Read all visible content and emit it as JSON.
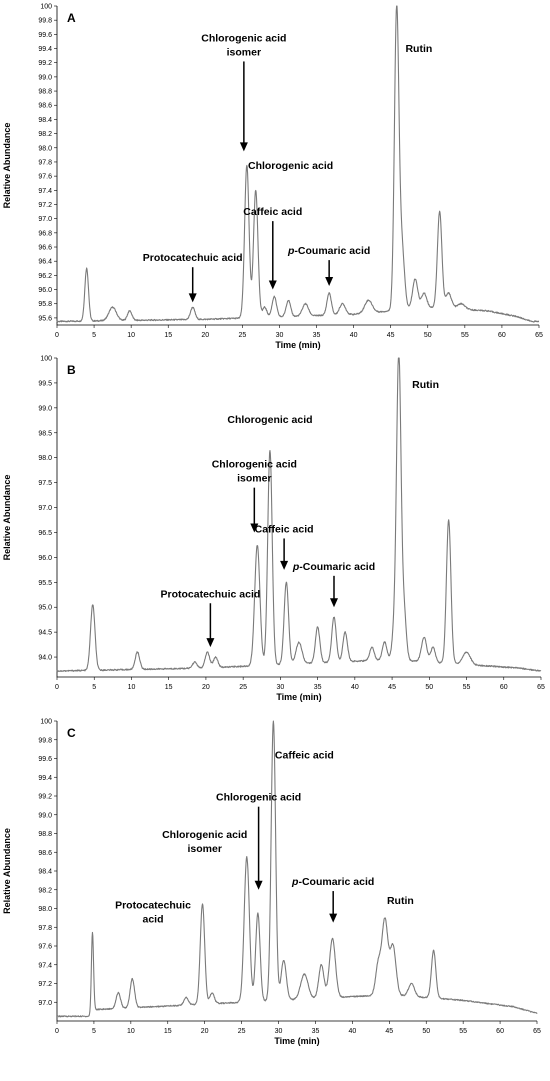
{
  "chart_data": [
    {
      "type": "line",
      "panel_label": "A",
      "xlabel": "Time (min)",
      "ylabel": "Relative Abundance",
      "xlim": [
        0,
        65
      ],
      "ylim": [
        95.5,
        100.0
      ],
      "xticks": [
        0,
        5,
        10,
        15,
        20,
        25,
        30,
        35,
        40,
        45,
        50,
        55,
        60,
        65
      ],
      "yticks": [
        "95.6",
        "95.8",
        "96.0",
        "96.2",
        "96.4",
        "96.6",
        "96.8",
        "97.0",
        "97.2",
        "97.4",
        "97.6",
        "97.8",
        "98.0",
        "98.2",
        "98.4",
        "98.6",
        "98.8",
        "99.0",
        "99.2",
        "99.4",
        "99.6",
        "99.8",
        "100"
      ],
      "baseline": {
        "x": [
          0,
          20,
          40,
          50,
          58,
          62,
          64
        ],
        "y": [
          95.55,
          95.58,
          95.65,
          95.75,
          95.7,
          95.62,
          95.55
        ]
      },
      "peaks": [
        {
          "x": 4.0,
          "y": 96.3,
          "w": 0.25
        },
        {
          "x": 7.5,
          "y": 95.75,
          "w": 0.5
        },
        {
          "x": 9.8,
          "y": 95.7,
          "w": 0.3
        },
        {
          "x": 18.3,
          "y": 95.75,
          "w": 0.3
        },
        {
          "x": 25.6,
          "y": 97.75,
          "w": 0.3
        },
        {
          "x": 26.8,
          "y": 97.4,
          "w": 0.3
        },
        {
          "x": 28.0,
          "y": 95.75,
          "w": 0.3
        },
        {
          "x": 29.3,
          "y": 95.9,
          "w": 0.3
        },
        {
          "x": 31.2,
          "y": 95.85,
          "w": 0.3
        },
        {
          "x": 33.5,
          "y": 95.8,
          "w": 0.4
        },
        {
          "x": 36.7,
          "y": 95.95,
          "w": 0.3
        },
        {
          "x": 38.5,
          "y": 95.8,
          "w": 0.4
        },
        {
          "x": 42.0,
          "y": 95.85,
          "w": 0.5
        },
        {
          "x": 45.8,
          "y": 99.9,
          "w": 0.3
        },
        {
          "x": 46.5,
          "y": 96.6,
          "w": 0.35
        },
        {
          "x": 48.3,
          "y": 96.15,
          "w": 0.35
        },
        {
          "x": 49.5,
          "y": 95.95,
          "w": 0.35
        },
        {
          "x": 51.6,
          "y": 97.1,
          "w": 0.3
        },
        {
          "x": 52.8,
          "y": 95.95,
          "w": 0.4
        },
        {
          "x": 54.5,
          "y": 95.8,
          "w": 0.5
        }
      ],
      "annotations": [
        {
          "text": "Protocatechuic acid",
          "x": 18.3,
          "arrow": true,
          "text_y": 96.4,
          "tip_y": 95.82
        },
        {
          "text": "Chlorogenic acid",
          "line2": "isomer",
          "x": 25.2,
          "arrow": true,
          "text_y": 99.5,
          "tip_y": 97.95
        },
        {
          "text": "Chlorogenic acid",
          "x": 31.5,
          "arrow": false,
          "text_y": 97.7
        },
        {
          "text": "Caffeic acid",
          "x": 29.1,
          "arrow": true,
          "text_y": 97.05,
          "tip_y": 96.0
        },
        {
          "text": "p-Coumaric acid",
          "x": 36.7,
          "arrow": true,
          "text_y": 96.5,
          "tip_y": 96.05
        },
        {
          "text": "Rutin",
          "x": 48.8,
          "arrow": false,
          "text_y": 99.35
        }
      ]
    },
    {
      "type": "line",
      "panel_label": "B",
      "xlabel": "Time (min)",
      "ylabel": "Relative Abundance",
      "xlim": [
        0,
        65
      ],
      "ylim": [
        93.6,
        100.0
      ],
      "xticks": [
        0,
        5,
        10,
        15,
        20,
        25,
        30,
        35,
        40,
        45,
        50,
        55,
        60,
        65
      ],
      "yticks": [
        "94.0",
        "94.5",
        "95.0",
        "95.5",
        "96.0",
        "96.5",
        "97.0",
        "97.5",
        "98.0",
        "98.5",
        "99.0",
        "99.5",
        "100"
      ],
      "baseline": {
        "x": [
          0,
          20,
          30,
          45,
          55,
          62,
          65
        ],
        "y": [
          93.72,
          93.78,
          93.85,
          93.95,
          93.85,
          93.78,
          93.72
        ]
      },
      "peaks": [
        {
          "x": 4.8,
          "y": 95.05,
          "w": 0.3
        },
        {
          "x": 10.8,
          "y": 94.1,
          "w": 0.3
        },
        {
          "x": 18.5,
          "y": 93.9,
          "w": 0.3
        },
        {
          "x": 20.2,
          "y": 94.1,
          "w": 0.3
        },
        {
          "x": 21.3,
          "y": 94.0,
          "w": 0.3
        },
        {
          "x": 26.9,
          "y": 96.25,
          "w": 0.35
        },
        {
          "x": 28.6,
          "y": 98.15,
          "w": 0.3
        },
        {
          "x": 30.8,
          "y": 95.5,
          "w": 0.3
        },
        {
          "x": 32.5,
          "y": 94.3,
          "w": 0.4
        },
        {
          "x": 35.0,
          "y": 94.6,
          "w": 0.3
        },
        {
          "x": 37.2,
          "y": 94.8,
          "w": 0.3
        },
        {
          "x": 38.7,
          "y": 94.5,
          "w": 0.3
        },
        {
          "x": 42.3,
          "y": 94.2,
          "w": 0.3
        },
        {
          "x": 44.0,
          "y": 94.3,
          "w": 0.3
        },
        {
          "x": 45.3,
          "y": 94.5,
          "w": 0.3
        },
        {
          "x": 45.9,
          "y": 100.0,
          "w": 0.3
        },
        {
          "x": 46.6,
          "y": 94.9,
          "w": 0.3
        },
        {
          "x": 49.3,
          "y": 94.4,
          "w": 0.35
        },
        {
          "x": 50.5,
          "y": 94.2,
          "w": 0.3
        },
        {
          "x": 52.6,
          "y": 96.75,
          "w": 0.3
        },
        {
          "x": 55.0,
          "y": 94.1,
          "w": 0.5
        }
      ],
      "annotations": [
        {
          "text": "Protocatechuic acid",
          "x": 20.6,
          "arrow": true,
          "text_y": 95.2,
          "tip_y": 94.2
        },
        {
          "text": "Chlorogenic acid",
          "line2": "isomer",
          "x": 26.5,
          "arrow": true,
          "text_y": 97.8,
          "tip_y": 96.5
        },
        {
          "text": "Chlorogenic acid",
          "x": 28.6,
          "arrow": false,
          "text_y": 98.7
        },
        {
          "text": "Caffeic acid",
          "x": 30.5,
          "arrow": true,
          "text_y": 96.5,
          "tip_y": 95.75
        },
        {
          "text": "p-Coumaric acid",
          "x": 37.2,
          "arrow": true,
          "text_y": 95.75,
          "tip_y": 95.0
        },
        {
          "text": "Rutin",
          "x": 49.5,
          "arrow": false,
          "text_y": 99.4
        }
      ]
    },
    {
      "type": "line",
      "panel_label": "C",
      "xlabel": "Time (min)",
      "ylabel": "Relative Abundance",
      "xlim": [
        0,
        65
      ],
      "ylim": [
        96.8,
        100.0
      ],
      "xticks": [
        0,
        5,
        10,
        15,
        20,
        25,
        30,
        35,
        40,
        45,
        50,
        55,
        60,
        65
      ],
      "yticks": [
        "97.0",
        "97.2",
        "97.4",
        "97.6",
        "97.8",
        "98.0",
        "98.2",
        "98.4",
        "98.6",
        "98.8",
        "99.0",
        "99.2",
        "99.4",
        "99.6",
        "99.8",
        "100"
      ],
      "baseline": {
        "x": [
          0,
          4.6,
          4.8,
          20,
          30,
          45,
          55,
          62,
          65
        ],
        "y": [
          96.85,
          96.85,
          96.92,
          96.98,
          97.02,
          97.08,
          97.02,
          96.95,
          96.88
        ]
      },
      "peaks": [
        {
          "x": 4.8,
          "y": 97.75,
          "w": 0.15
        },
        {
          "x": 8.3,
          "y": 97.1,
          "w": 0.3
        },
        {
          "x": 10.2,
          "y": 97.25,
          "w": 0.3
        },
        {
          "x": 17.5,
          "y": 97.05,
          "w": 0.3
        },
        {
          "x": 19.7,
          "y": 98.05,
          "w": 0.3
        },
        {
          "x": 21.0,
          "y": 97.1,
          "w": 0.3
        },
        {
          "x": 25.7,
          "y": 98.55,
          "w": 0.35
        },
        {
          "x": 27.2,
          "y": 97.95,
          "w": 0.3
        },
        {
          "x": 29.3,
          "y": 100.0,
          "w": 0.3
        },
        {
          "x": 30.7,
          "y": 97.45,
          "w": 0.35
        },
        {
          "x": 33.5,
          "y": 97.3,
          "w": 0.5
        },
        {
          "x": 35.8,
          "y": 97.4,
          "w": 0.35
        },
        {
          "x": 37.3,
          "y": 97.68,
          "w": 0.4
        },
        {
          "x": 43.5,
          "y": 97.4,
          "w": 0.35
        },
        {
          "x": 44.4,
          "y": 97.88,
          "w": 0.4
        },
        {
          "x": 45.5,
          "y": 97.6,
          "w": 0.4
        },
        {
          "x": 48.0,
          "y": 97.2,
          "w": 0.4
        },
        {
          "x": 51.0,
          "y": 97.55,
          "w": 0.3
        }
      ],
      "annotations": [
        {
          "text": "Protocatechuic",
          "line2": "acid",
          "x": 13.0,
          "arrow": false,
          "text_y": 98.0
        },
        {
          "text": "Chlorogenic acid",
          "line2": "isomer",
          "x": 20.0,
          "arrow": false,
          "text_y": 98.75
        },
        {
          "text": "Chlorogenic acid",
          "x": 27.3,
          "arrow": true,
          "text_y": 99.15,
          "tip_y": 98.2
        },
        {
          "text": "Caffeic acid",
          "x": 33.5,
          "arrow": false,
          "text_y": 99.6
        },
        {
          "text": "p-Coumaric acid",
          "x": 37.4,
          "arrow": true,
          "text_y": 98.25,
          "tip_y": 97.85
        },
        {
          "text": "Rutin",
          "x": 46.5,
          "arrow": false,
          "text_y": 98.05
        }
      ]
    }
  ]
}
